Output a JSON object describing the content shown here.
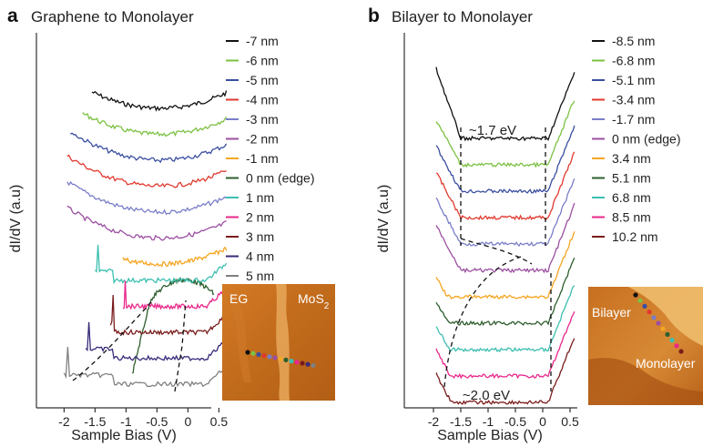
{
  "colors": {
    "axis": "#333333",
    "dash": "#111111",
    "inset_bg": "#c96f1e"
  },
  "chart_data": [
    {
      "type": "line",
      "panel_label": "a",
      "title": "Graphene to Monolayer",
      "xlabel": "Sample Bias (V)",
      "ylabel": "dI/dV (a.u)",
      "xlim": [
        -2.3,
        0.75
      ],
      "x_ticks": [
        "-2",
        "-1.5",
        "-1",
        "-0.5",
        "0",
        "0.5"
      ],
      "x_tick_values": [
        -2,
        -1.5,
        -1,
        -0.5,
        0,
        0.5
      ],
      "legend_placement": "right",
      "series": [
        {
          "name": "-7 nm",
          "color": "#111111",
          "x_start": -1.55,
          "x_end": 0.62
        },
        {
          "name": "-6 nm",
          "color": "#7cc143",
          "x_start": -1.7,
          "x_end": 0.62
        },
        {
          "name": "-5 nm",
          "color": "#3a4fa0",
          "x_start": -1.9,
          "x_end": 0.62
        },
        {
          "name": "-4 nm",
          "color": "#e03a2f",
          "x_start": -1.95,
          "x_end": 0.62
        },
        {
          "name": "-3 nm",
          "color": "#7a7ec8",
          "x_start": -1.95,
          "x_end": 0.62
        },
        {
          "name": "-2 nm",
          "color": "#9b4fa0",
          "x_start": -1.95,
          "x_end": 0.62
        },
        {
          "name": "-1 nm",
          "color": "#f5a623",
          "x_start": -1.05,
          "x_end": 0.62
        },
        {
          "name": "0 nm (edge)",
          "color": "#2e5e2e",
          "x_start": -0.9,
          "x_end": 0.42
        },
        {
          "name": "1 nm",
          "color": "#3cbfb0",
          "x_start": -1.5,
          "x_end": 0.62
        },
        {
          "name": "2 nm",
          "color": "#e8288a",
          "x_start": -1.05,
          "x_end": 0.62
        },
        {
          "name": "3 nm",
          "color": "#7a1c1c",
          "x_start": -1.25,
          "x_end": 0.62
        },
        {
          "name": "4 nm",
          "color": "#3a2a7a",
          "x_start": -1.65,
          "x_end": 0.62
        },
        {
          "name": "5 nm",
          "color": "#808080",
          "x_start": -2.0,
          "x_end": 0.62
        }
      ],
      "inset": {
        "left_label": "EG",
        "right_label": "MoS",
        "right_label_sub": "2"
      }
    },
    {
      "type": "line",
      "panel_label": "b",
      "title": "Bilayer to Monolayer",
      "xlabel": "Sample Bias (V)",
      "ylabel": "dI/dV (a.u)",
      "xlim": [
        -2.3,
        0.75
      ],
      "x_ticks": [
        "-2",
        "-1.5",
        "-1",
        "-0.5",
        "0",
        "0.5"
      ],
      "x_tick_values": [
        -2,
        -1.5,
        -1,
        -0.5,
        0,
        0.5
      ],
      "legend_placement": "right",
      "annotations": [
        "~1.7 eV",
        "~2.0 eV"
      ],
      "series": [
        {
          "name": "-8.5 nm",
          "color": "#111111",
          "x_start": -1.95,
          "x_end": 0.58
        },
        {
          "name": "-6.8 nm",
          "color": "#7cc143",
          "x_start": -1.95,
          "x_end": 0.58
        },
        {
          "name": "-5.1 nm",
          "color": "#3a4fa0",
          "x_start": -1.95,
          "x_end": 0.58
        },
        {
          "name": "-3.4 nm",
          "color": "#e03a2f",
          "x_start": -1.95,
          "x_end": 0.58
        },
        {
          "name": "-1.7 nm",
          "color": "#7a7ec8",
          "x_start": -1.95,
          "x_end": 0.58
        },
        {
          "name": "0 nm (edge)",
          "color": "#9b4fa0",
          "x_start": -1.95,
          "x_end": 0.58
        },
        {
          "name": "3.4 nm",
          "color": "#f5a623",
          "x_start": -1.95,
          "x_end": 0.58
        },
        {
          "name": "5.1 nm",
          "color": "#2e5e2e",
          "x_start": -1.95,
          "x_end": 0.58
        },
        {
          "name": "6.8 nm",
          "color": "#3cbfb0",
          "x_start": -1.95,
          "x_end": 0.58
        },
        {
          "name": "8.5 nm",
          "color": "#e8288a",
          "x_start": -1.95,
          "x_end": 0.58
        },
        {
          "name": "10.2 nm",
          "color": "#7a1c1c",
          "x_start": -1.95,
          "x_end": 0.58
        }
      ],
      "inset": {
        "top_label": "Bilayer",
        "bottom_label": "Monolayer"
      }
    }
  ]
}
